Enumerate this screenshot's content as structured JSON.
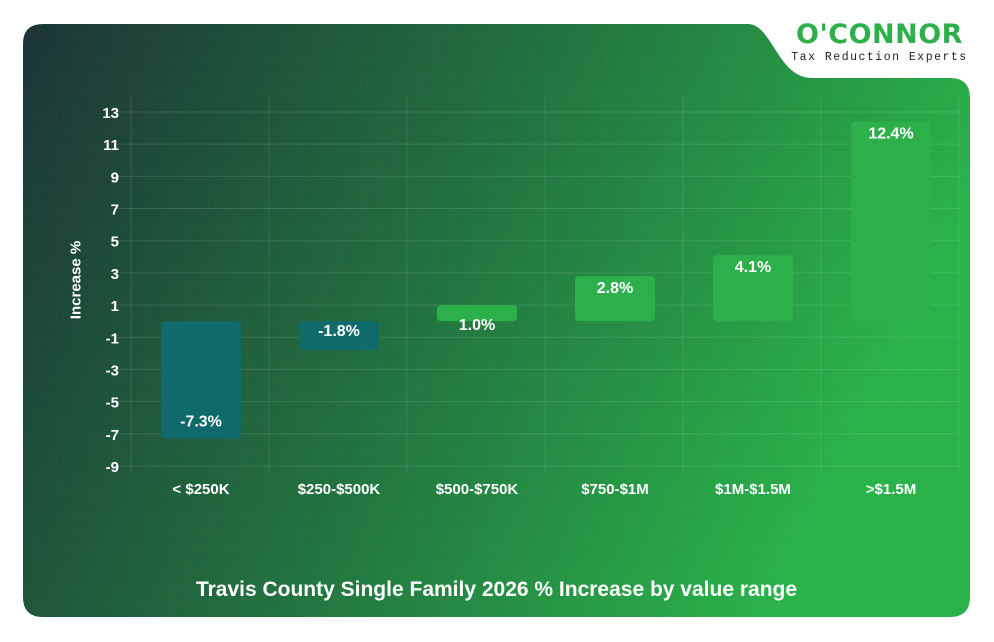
{
  "logo": {
    "brand": "O'CONNOR",
    "tagline": "Tax Reduction Experts"
  },
  "colors": {
    "negative": "#10696b",
    "positive": "#2db04b",
    "bg_left": "#1c3536",
    "bg_right": "#2ab24a"
  },
  "chart_data": {
    "type": "bar",
    "title": "Travis County Single Family 2026 % Increase by value range",
    "xlabel": "",
    "ylabel": "Increase %",
    "categories": [
      "< $250K",
      "$250-$500K",
      "$500-$750K",
      "$750-$1M",
      "$1M-$1.5M",
      ">$1.5M"
    ],
    "values": [
      -7.3,
      -1.8,
      1.0,
      2.8,
      4.1,
      12.4
    ],
    "data_labels": [
      "-7.3%",
      "-1.8%",
      "1.0%",
      "2.8%",
      "4.1%",
      "12.4%"
    ],
    "yticks": [
      13,
      11,
      9,
      7,
      5,
      3,
      1,
      -1,
      -3,
      -5,
      -7,
      -9
    ],
    "ylim": [
      -9,
      13
    ],
    "grid": true,
    "legend": "none"
  }
}
